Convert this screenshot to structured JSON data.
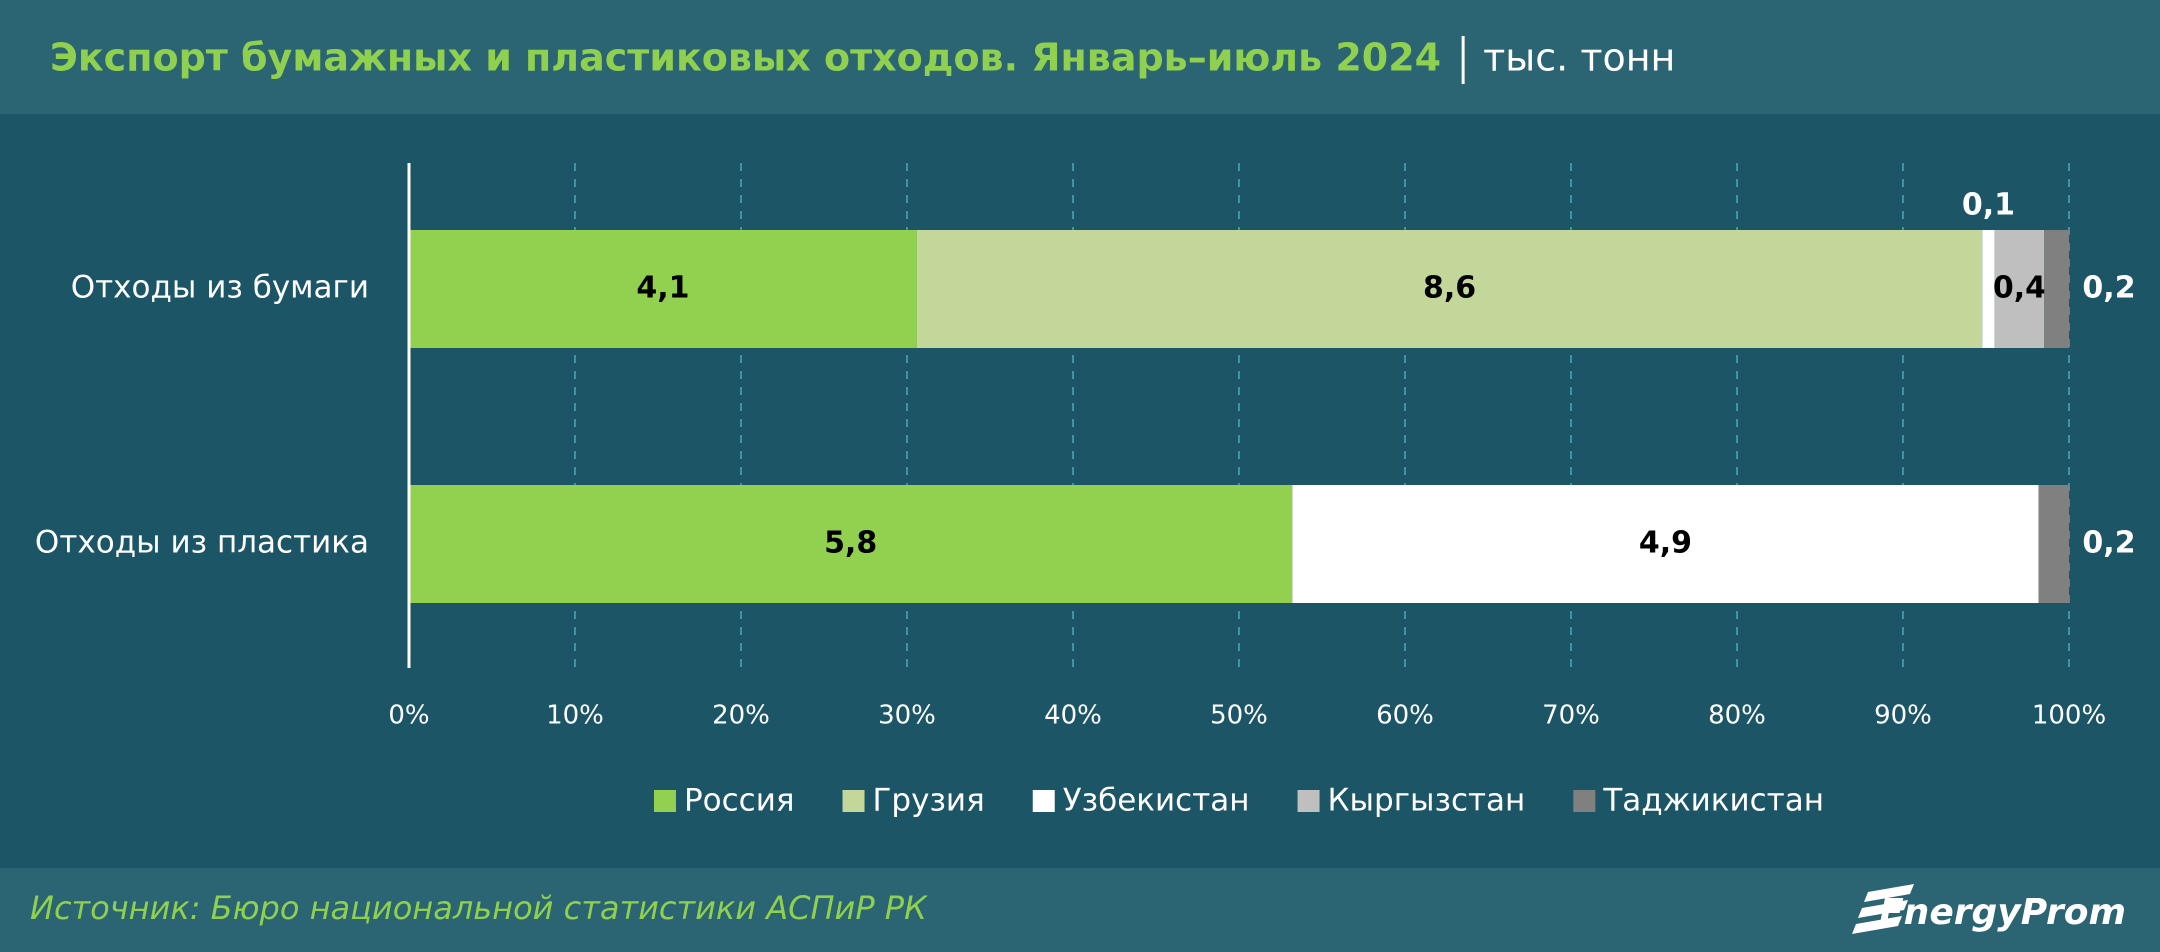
{
  "chart_data": {
    "type": "bar",
    "orientation": "horizontal",
    "stacking": "percent",
    "title": "Экспорт бумажных и пластиковых отходов. Январь–июль 2024",
    "unit": "тыс. тонн",
    "categories": [
      "Отходы из бумаги",
      "Отходы из пластика"
    ],
    "series": [
      {
        "name": "Россия",
        "color": "#92d050",
        "values": [
          4.1,
          5.8
        ],
        "value_labels": [
          "4,1",
          "5,8"
        ]
      },
      {
        "name": "Грузия",
        "color": "#c4d79b",
        "values": [
          8.6,
          null
        ],
        "value_labels": [
          "8,6",
          null
        ]
      },
      {
        "name": "Узбекистан",
        "color": "#ffffff",
        "values": [
          0.1,
          4.9
        ],
        "value_labels": [
          "0,1",
          "4,9"
        ]
      },
      {
        "name": "Кыргызстан",
        "color": "#bfbfbf",
        "values": [
          0.4,
          null
        ],
        "value_labels": [
          "0,4",
          null
        ]
      },
      {
        "name": "Таджикистан",
        "color": "#808080",
        "values": [
          0.2,
          0.2
        ],
        "value_labels": [
          "0,2",
          "0,2"
        ]
      }
    ],
    "xlim": [
      0,
      100
    ],
    "xticks": [
      {
        "value": 0,
        "label": "0%"
      },
      {
        "value": 10,
        "label": "10%"
      },
      {
        "value": 20,
        "label": "20%"
      },
      {
        "value": 30,
        "label": "30%"
      },
      {
        "value": 40,
        "label": "40%"
      },
      {
        "value": 50,
        "label": "50%"
      },
      {
        "value": 60,
        "label": "60%"
      },
      {
        "value": 70,
        "label": "70%"
      },
      {
        "value": 80,
        "label": "80%"
      },
      {
        "value": 90,
        "label": "90%"
      },
      {
        "value": 100,
        "label": "100%"
      }
    ],
    "grid": true,
    "legend": "bottom",
    "source": "Источник: Бюро национальной статистики АСПиР РК"
  },
  "brand": "EnergyProm"
}
